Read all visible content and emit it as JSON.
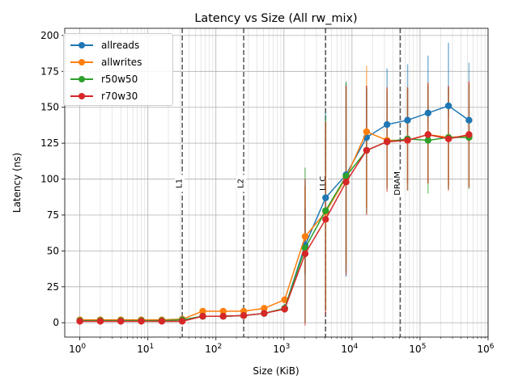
{
  "chart_data": {
    "type": "line",
    "title": "Latency vs Size (All rw_mix)",
    "xlabel": "Size (KiB)",
    "ylabel": "Latency (ns)",
    "xscale": "log",
    "xlim": [
      0.6,
      1000000
    ],
    "ylim": [
      -10,
      205
    ],
    "grid": true,
    "legend_position": "top-left",
    "x": [
      1,
      2,
      4,
      8,
      16,
      32,
      64,
      128,
      256,
      512,
      1024,
      2048,
      4096,
      8192,
      16384,
      32768,
      65536,
      131072,
      262144,
      524288
    ],
    "x_ticks": [
      {
        "value": 1,
        "base": "10",
        "exp": "0"
      },
      {
        "value": 10,
        "base": "10",
        "exp": "1"
      },
      {
        "value": 100,
        "base": "10",
        "exp": "2"
      },
      {
        "value": 1000,
        "base": "10",
        "exp": "3"
      },
      {
        "value": 10000,
        "base": "10",
        "exp": "4"
      },
      {
        "value": 100000,
        "base": "10",
        "exp": "5"
      },
      {
        "value": 1000000,
        "base": "10",
        "exp": "6"
      }
    ],
    "y_ticks": [
      0,
      25,
      50,
      75,
      100,
      125,
      150,
      175,
      200
    ],
    "series": [
      {
        "name": "allreads",
        "color": "#1f77b4",
        "values": [
          1.5,
          1.5,
          1.5,
          1.5,
          1.5,
          2,
          4.5,
          4.5,
          5,
          6.5,
          10,
          54,
          87,
          103,
          129,
          138,
          141,
          146,
          151,
          141
        ],
        "err_low": [
          1.2,
          1.2,
          1.2,
          1.2,
          1.2,
          1.5,
          3.5,
          3.5,
          4,
          5,
          7,
          33,
          70,
          32,
          120,
          128,
          133,
          138,
          143,
          133
        ],
        "err_high": [
          2,
          2,
          2,
          2,
          2,
          2.5,
          5.5,
          5.5,
          6,
          8,
          13,
          80,
          146,
          167,
          165,
          177,
          180,
          186,
          195,
          181
        ]
      },
      {
        "name": "allwrites",
        "color": "#ff7f0e",
        "values": [
          2,
          2,
          2,
          2,
          2,
          2.5,
          8,
          8,
          8,
          10,
          16,
          60,
          77,
          101,
          133,
          127,
          127,
          131,
          129,
          130
        ],
        "err_low": [
          1.5,
          1.5,
          1.5,
          1.5,
          1.5,
          2,
          7,
          7,
          7,
          9,
          14,
          35,
          10,
          40,
          80,
          95,
          97,
          97,
          95,
          95
        ],
        "err_high": [
          2.5,
          2.5,
          2.5,
          2.5,
          2.5,
          3,
          9,
          9,
          9,
          11,
          18,
          95,
          140,
          165,
          179,
          163,
          164,
          167,
          164,
          168
        ]
      },
      {
        "name": "r50w50",
        "color": "#2ca02c",
        "values": [
          1.5,
          1.5,
          1.5,
          1.5,
          1.5,
          2,
          4.5,
          4.5,
          5,
          6.5,
          10,
          52,
          78,
          102,
          120,
          126,
          128,
          127,
          129,
          129
        ],
        "err_low": [
          1.2,
          1.2,
          1.2,
          1.2,
          1.2,
          1.5,
          3.5,
          3.5,
          4,
          5,
          7,
          0,
          8,
          35,
          76,
          93,
          92,
          90,
          93,
          93
        ],
        "err_high": [
          2,
          2,
          2,
          2,
          2,
          2.5,
          5.5,
          5.5,
          6,
          8,
          13,
          108,
          144,
          168,
          163,
          162,
          163,
          165,
          164,
          166
        ]
      },
      {
        "name": "r70w30",
        "color": "#d62728",
        "values": [
          1,
          1,
          1,
          1,
          1,
          1,
          4.5,
          4.5,
          5,
          6.5,
          9.5,
          48,
          72,
          98,
          120,
          126,
          127,
          131,
          128,
          131
        ],
        "err_low": [
          0.8,
          0.8,
          0.8,
          0.8,
          0.8,
          0.8,
          3.5,
          3.5,
          4,
          5,
          7,
          -2,
          6,
          33,
          75,
          91,
          92,
          97,
          92,
          94
        ],
        "err_high": [
          1.5,
          1.5,
          1.5,
          1.5,
          1.5,
          1.5,
          5.5,
          5.5,
          6,
          8,
          12,
          100,
          140,
          165,
          165,
          164,
          164,
          167,
          165,
          168
        ]
      }
    ],
    "vlines": [
      {
        "x": 32,
        "label": "L1"
      },
      {
        "x": 256,
        "label": "L2"
      },
      {
        "x": 4096,
        "label": "LLC"
      },
      {
        "x": 51200,
        "label": "DRAM"
      }
    ]
  }
}
